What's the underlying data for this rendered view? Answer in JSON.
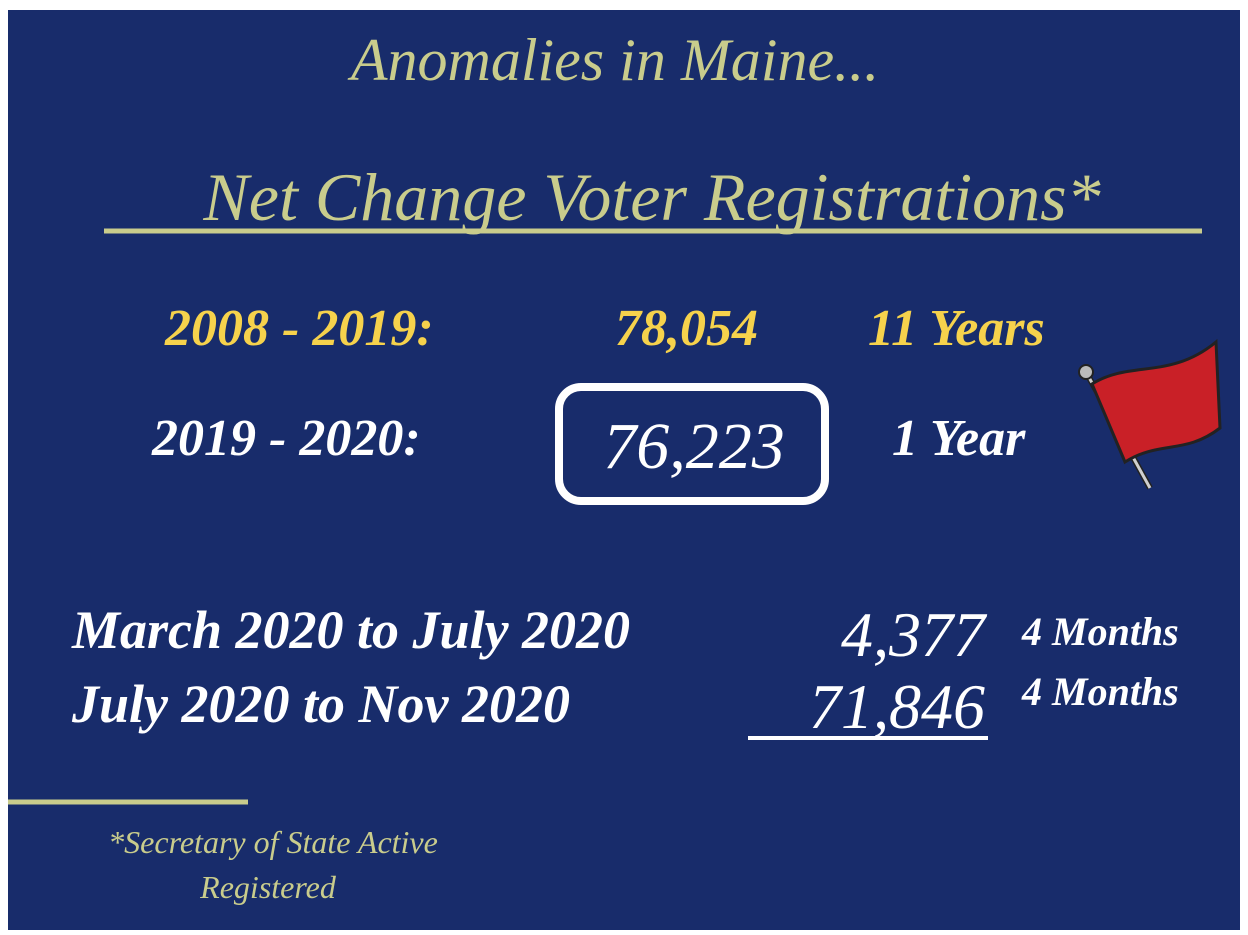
{
  "title": "Anomalies in Maine...",
  "subtitle": "Net Change Voter Registrations*",
  "rows": [
    {
      "period": "2008 - 2019:",
      "value": "78,054",
      "duration": "11 Years"
    },
    {
      "period": "2019 - 2020:",
      "value": "76,223",
      "duration": "1 Year"
    },
    {
      "period": "March 2020 to July 2020",
      "value": "4,377",
      "duration": "4 Months"
    },
    {
      "period": "July 2020 to Nov 2020",
      "value": "71,846",
      "duration": "4 Months"
    }
  ],
  "footnote": [
    "*Secretary of State Active",
    "Registered"
  ]
}
